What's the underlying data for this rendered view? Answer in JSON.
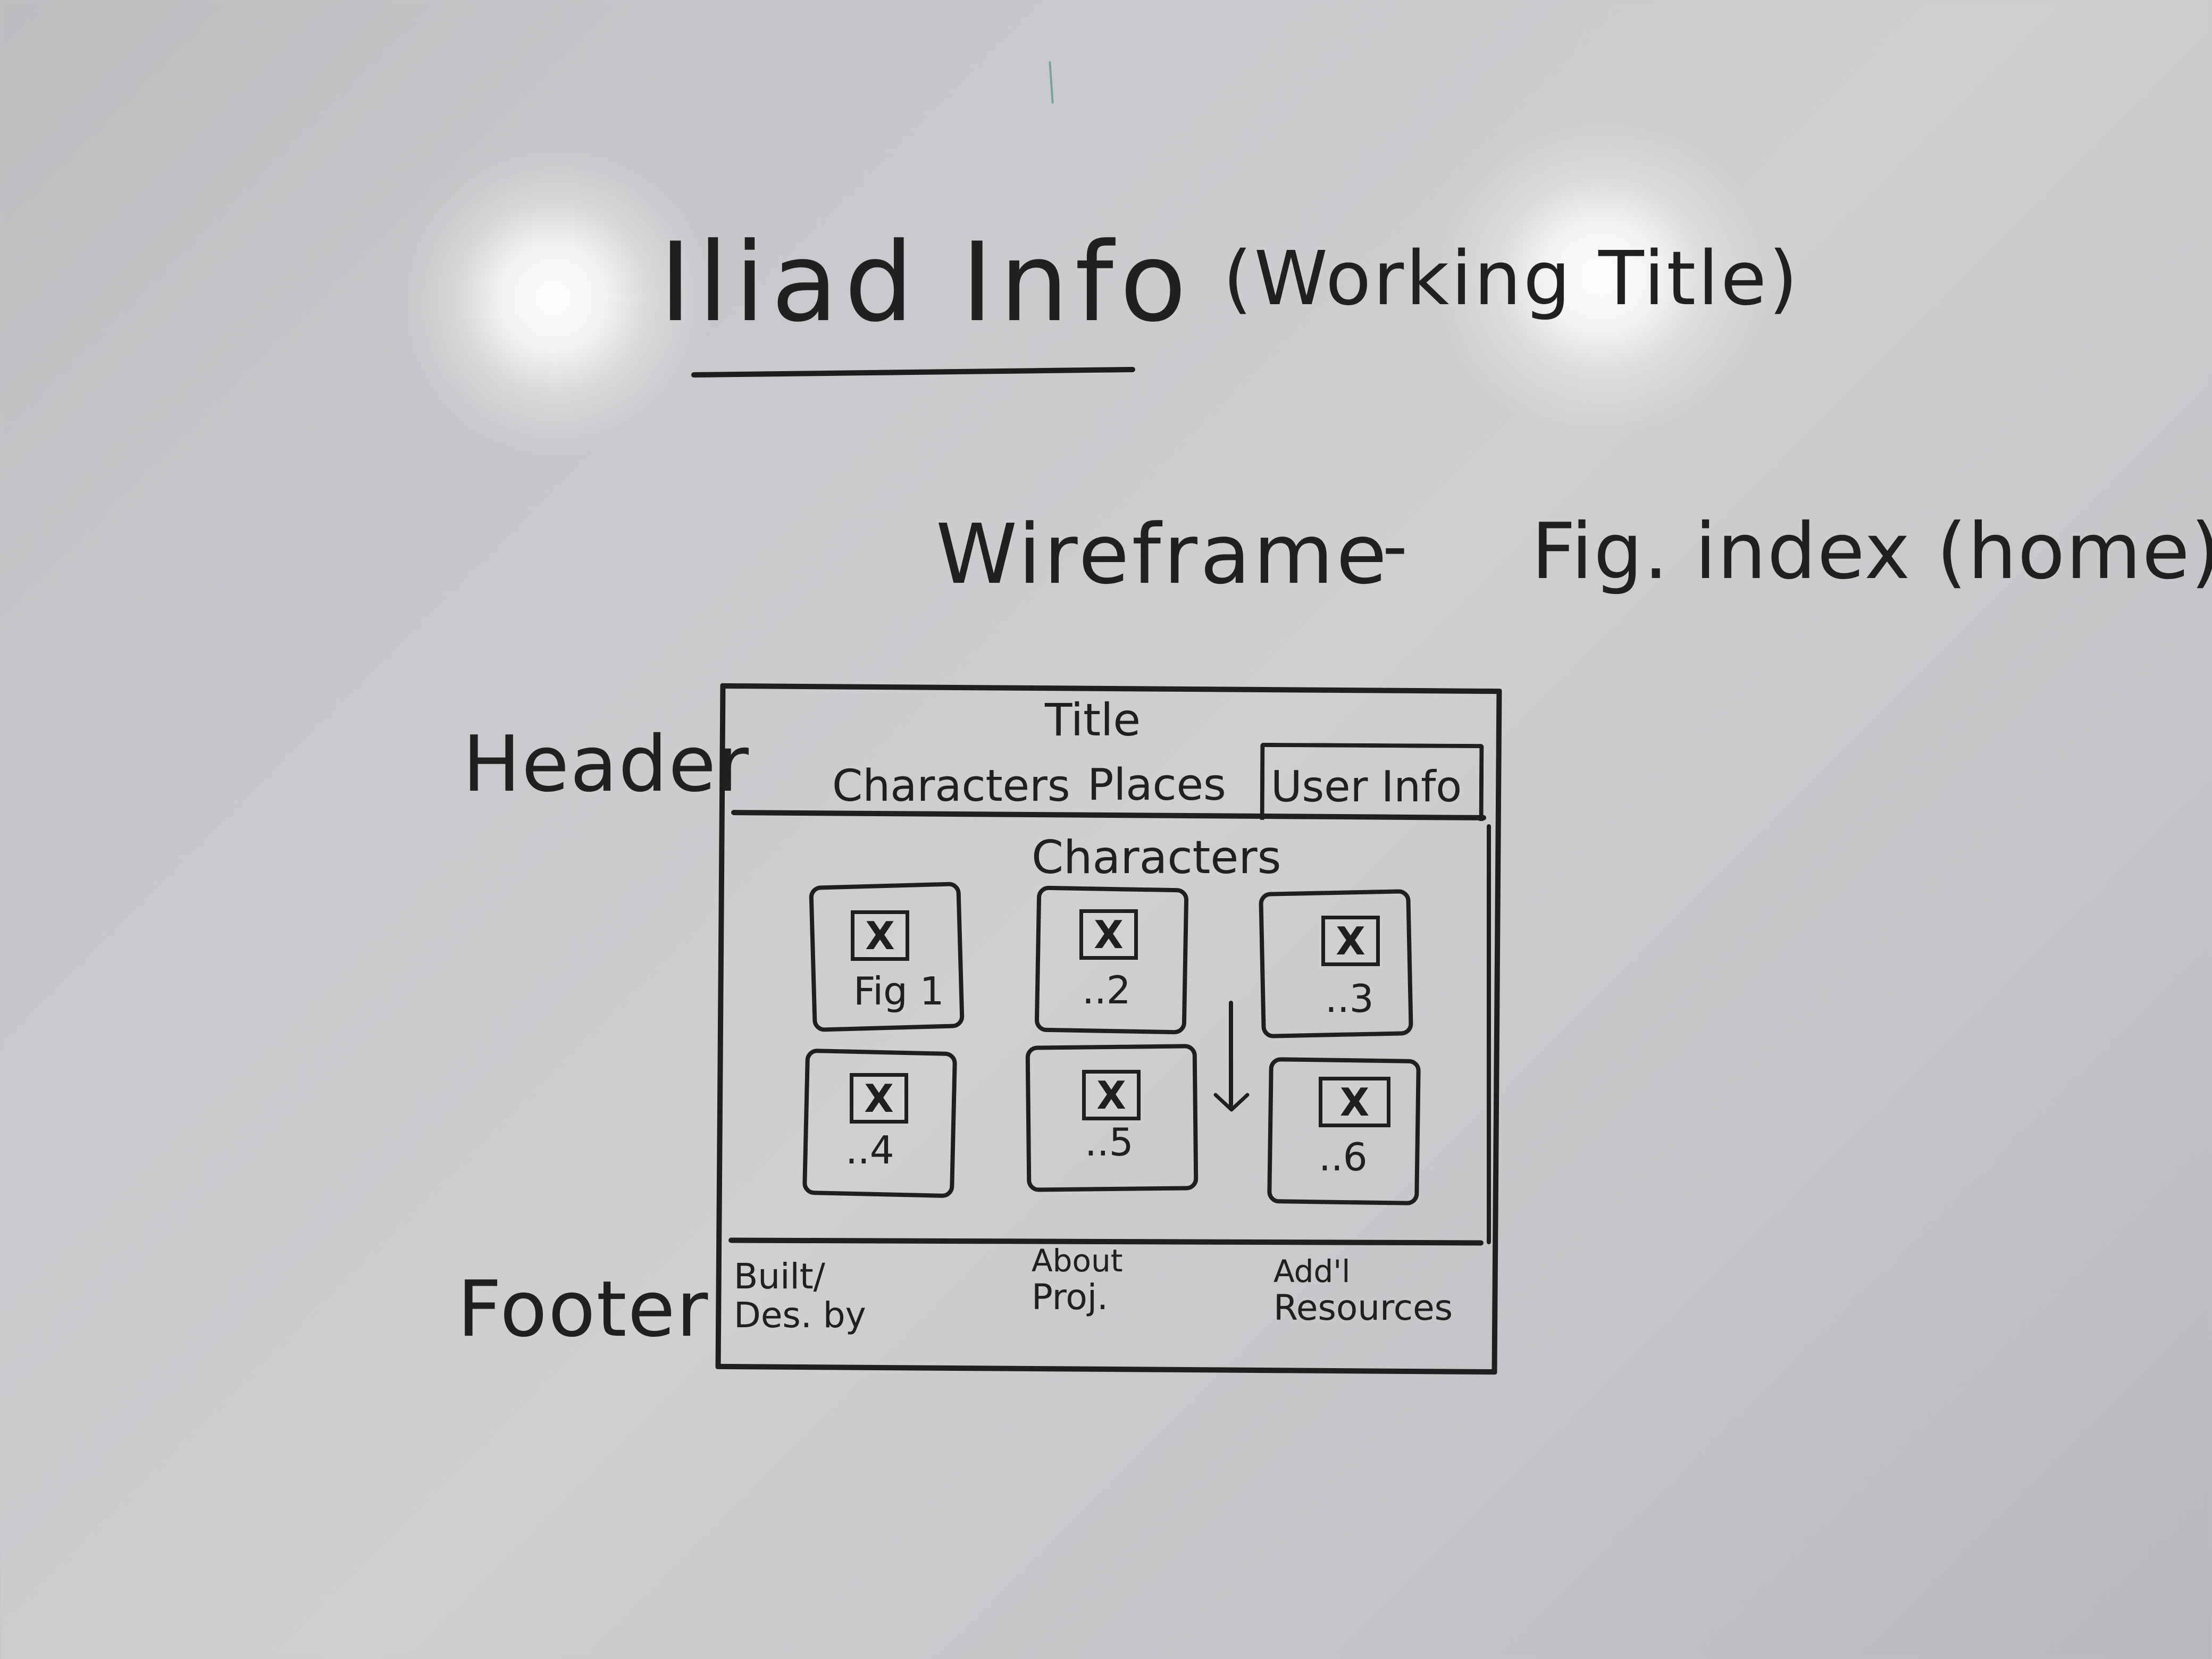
{
  "heading": {
    "title": "Iliad Info",
    "subtitle": "(Working Title)"
  },
  "wireframe_heading": {
    "label": "Wireframe",
    "separator": "-",
    "page": "Fig. index (home)"
  },
  "side_labels": {
    "header": "Header",
    "footer": "Footer"
  },
  "wireframe": {
    "title": "Title",
    "nav": {
      "characters": "Characters",
      "places": "Places",
      "user_info": "User Info"
    },
    "section_title": "Characters",
    "cards": [
      {
        "label": "Fig 1",
        "placeholder": "X"
      },
      {
        "label": "..2",
        "placeholder": "X"
      },
      {
        "label": "..3",
        "placeholder": "X"
      },
      {
        "label": "..4",
        "placeholder": "X"
      },
      {
        "label": "..5",
        "placeholder": "X"
      },
      {
        "label": "..6",
        "placeholder": "X"
      }
    ],
    "footer": {
      "built_line_1": "Built/",
      "built_line_2": "Des. by",
      "about_line_1": "About",
      "about_line_2": "Proj.",
      "resources_line_1": "Add'l",
      "resources_line_2": "Resources"
    }
  }
}
